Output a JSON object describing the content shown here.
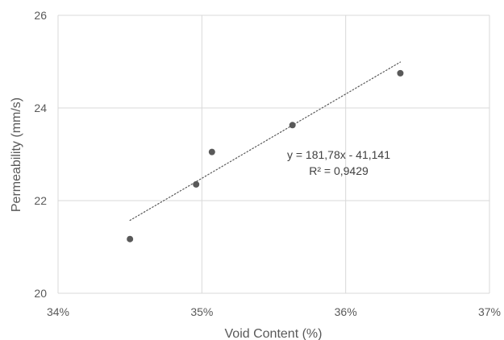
{
  "chart_data": {
    "type": "scatter",
    "xlabel": "Void Content (%)",
    "ylabel": "Permeability (mm/s)",
    "xlim": [
      0.34,
      0.37
    ],
    "ylim": [
      20,
      26
    ],
    "x_ticks": [
      0.34,
      0.35,
      0.36,
      0.37
    ],
    "x_tick_labels": [
      "34%",
      "35%",
      "36%",
      "37%"
    ],
    "y_ticks": [
      20,
      22,
      24,
      26
    ],
    "y_tick_labels": [
      "20",
      "22",
      "24",
      "26"
    ],
    "grid": true,
    "series": [
      {
        "points": [
          {
            "x": 0.345,
            "y": 21.17
          },
          {
            "x": 0.3496,
            "y": 22.35
          },
          {
            "x": 0.3507,
            "y": 23.05
          },
          {
            "x": 0.3563,
            "y": 23.63
          },
          {
            "x": 0.3638,
            "y": 24.75
          }
        ],
        "color": "#595959"
      }
    ],
    "trendline": {
      "slope": 181.78,
      "intercept": -41.141,
      "x_range": [
        0.345,
        0.3638
      ],
      "style": "dotted",
      "equation": "y = 181,78x - 41,141",
      "r_squared": "R² = 0,9429"
    },
    "colors": {
      "grid": "#d9d9d9",
      "text": "#595959",
      "marker": "#595959",
      "trendline": "#595959"
    }
  }
}
